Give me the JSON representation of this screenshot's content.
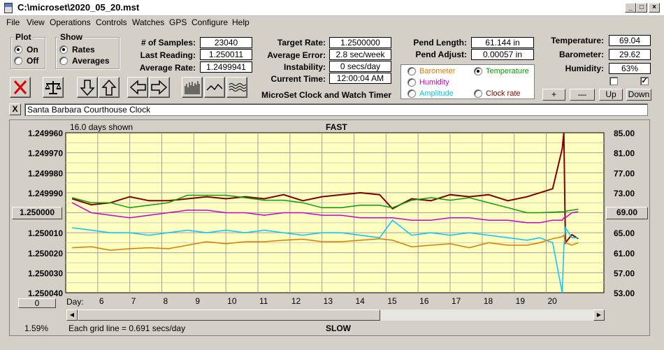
{
  "window": {
    "title": "C:\\microset\\2020_05_20.mst"
  },
  "menu": [
    "File",
    "View",
    "Operations",
    "Controls",
    "Watches",
    "GPS",
    "Configure",
    "Help"
  ],
  "plot_group": {
    "title": "Plot",
    "options": [
      {
        "label": "On",
        "selected": true
      },
      {
        "label": "Off",
        "selected": false
      }
    ]
  },
  "show_group": {
    "title": "Show",
    "options": [
      {
        "label": "Rates",
        "selected": true
      },
      {
        "label": "Averages",
        "selected": false
      }
    ]
  },
  "stats_left": [
    {
      "label": "# of Samples:",
      "value": "23040"
    },
    {
      "label": "Last Reading:",
      "value": "1.250011"
    },
    {
      "label": "Average Rate:",
      "value": "1.2499941"
    }
  ],
  "stats_mid": [
    {
      "label": "Target Rate:",
      "value": "1.2500000"
    },
    {
      "label": "Average Error:",
      "value": "2.8 sec/week"
    },
    {
      "label": "Instability:",
      "value": "0 secs/day"
    },
    {
      "label": "Current Time:",
      "value": "12:00:04 AM"
    }
  ],
  "pend": [
    {
      "label": "Pend Length:",
      "value": "61.144 in"
    },
    {
      "label": "Pend Adjust:",
      "value": "0.00057 in"
    }
  ],
  "env": [
    {
      "label": "Temperature:",
      "value": "69.04"
    },
    {
      "label": "Barometer:",
      "value": "29.62"
    },
    {
      "label": "Humidity:",
      "value": "63%"
    }
  ],
  "env_checks": [
    false,
    true
  ],
  "app_caption": "MicroSet Clock and Watch Timer",
  "legend": [
    {
      "label": "Barometer",
      "color": "#e07800",
      "selected": false
    },
    {
      "label": "Temperature",
      "color": "#00a000",
      "selected": true
    },
    {
      "label": "Humidity",
      "color": "#d000d0",
      "selected": false
    },
    {
      "label": "Clock rate",
      "color": "#800000",
      "selected": false
    },
    {
      "label": "Amplitude",
      "color": "#00c8ff",
      "selected": false
    }
  ],
  "adjust_buttons": [
    "+",
    "—",
    "Up",
    "Down"
  ],
  "toolbar_icons": [
    "stop-x-icon",
    "balance-scale-icon",
    "arrow-down-icon",
    "arrow-up-icon",
    "arrow-left-icon",
    "arrow-right-icon",
    "bar-graph-icon",
    "line-graph-icon",
    "wave-graph-icon"
  ],
  "clock_name": "Santa Barbara Courthouse Clock",
  "close_label": "X",
  "chart_header": {
    "days_shown": "16.0 days shown",
    "top": "FAST",
    "bottom": "SLOW",
    "grid_note": "Each grid line = 0.691 secs/day",
    "percent": "1.59%"
  },
  "left_button": "1.250000",
  "right_button": "69.00",
  "bottom_button": "0",
  "day_label": "Day:",
  "chart_data": {
    "type": "line",
    "x_label": "Day",
    "x_ticks": [
      "6",
      "7",
      "8",
      "9",
      "10",
      "11",
      "12",
      "13",
      "14",
      "15",
      "16",
      "17",
      "18",
      "19",
      "20"
    ],
    "y_left_ticks": [
      "1.249960",
      "1.249970",
      "1.249980",
      "1.249990",
      "1.250000",
      "1.250010",
      "1.250020",
      "1.250030",
      "1.250040"
    ],
    "y_left_range": [
      1.24996,
      1.25004
    ],
    "y_right_ticks": [
      "85.00",
      "81.00",
      "77.00",
      "73.00",
      "69.00",
      "65.00",
      "61.00",
      "57.00",
      "53.00"
    ],
    "y_right_range": [
      53,
      85
    ],
    "grid": true,
    "background": "#ffffc0",
    "x": [
      5.2,
      5.8,
      6.4,
      7,
      7.6,
      8.2,
      8.8,
      9.4,
      10,
      10.6,
      11.2,
      11.8,
      12.4,
      13,
      13.6,
      14.2,
      14.8,
      15.2,
      15.8,
      16.4,
      17,
      17.6,
      18.2,
      18.8,
      19.4,
      19.8,
      20.2,
      20.5,
      20.55,
      20.6,
      20.8,
      21
    ],
    "series": [
      {
        "name": "Clock rate",
        "color": "#800000",
        "values": [
          1.249993,
          1.249996,
          1.249995,
          1.249992,
          1.249994,
          1.249994,
          1.249993,
          1.249992,
          1.249993,
          1.249992,
          1.249993,
          1.249991,
          1.249994,
          1.249992,
          1.249991,
          1.24999,
          1.249991,
          1.249998,
          1.249993,
          1.249994,
          1.249991,
          1.249992,
          1.249991,
          1.249994,
          1.249992,
          1.24999,
          1.249988,
          1.249968,
          1.24996,
          1.250015,
          1.250011,
          1.250013
        ]
      },
      {
        "name": "Temperature",
        "color": "#00a000",
        "values": [
          72,
          71,
          71,
          70,
          70.5,
          71,
          72.5,
          72.5,
          72.5,
          72,
          71.5,
          71.5,
          71,
          70,
          70,
          70.5,
          70.5,
          70,
          71.5,
          72,
          71.5,
          72,
          71,
          70,
          69,
          69,
          69.1,
          69.2,
          69.2,
          69.3,
          69.5,
          69.7
        ]
      },
      {
        "name": "Humidity",
        "color": "#d000d0",
        "values": [
          71,
          69,
          68.5,
          68,
          68.5,
          69,
          69.5,
          69.5,
          69,
          69,
          68.5,
          69,
          69,
          68.5,
          68.5,
          68,
          68,
          68,
          67.5,
          67.5,
          68,
          68,
          67.5,
          67.5,
          67,
          67,
          67.5,
          67.5,
          68,
          68,
          69,
          69.2
        ]
      },
      {
        "name": "Amplitude",
        "color": "#00c8ff",
        "values": [
          66,
          65.5,
          65,
          65,
          64.5,
          65,
          65.5,
          65,
          65.5,
          65,
          65.5,
          65,
          64.5,
          65,
          65,
          64.5,
          64,
          67.5,
          64.5,
          65,
          64.5,
          65,
          64.5,
          64,
          63.5,
          64,
          63,
          53,
          62,
          66,
          64,
          64
        ]
      },
      {
        "name": "Barometer",
        "color": "#e07800",
        "values": [
          62,
          62.2,
          61.5,
          61.8,
          62,
          61.8,
          62.5,
          63.2,
          62.8,
          63.2,
          63.2,
          63.5,
          63.7,
          63.2,
          63.2,
          63.5,
          63.8,
          63.5,
          62.2,
          62.5,
          62.8,
          62,
          63,
          62.5,
          62.5,
          63,
          63.8,
          64.2,
          64.5,
          63,
          62.5,
          63
        ]
      }
    ]
  }
}
